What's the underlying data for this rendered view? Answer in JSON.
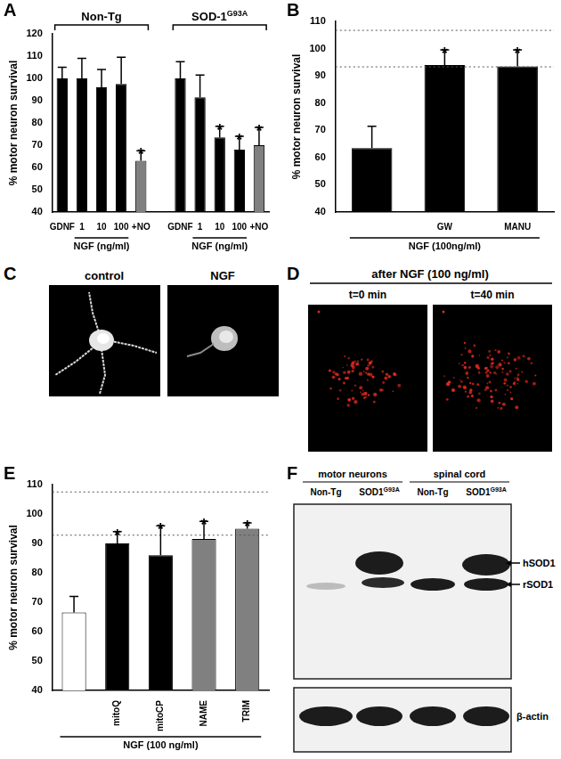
{
  "chart_data": [
    {
      "type": "bar",
      "panel": "A",
      "y_label": "% motor neuron survival",
      "categories": [
        "GDNF",
        "1",
        "10",
        "100",
        "+NO",
        null,
        "GDNF",
        "1",
        "10",
        "100",
        "+NO"
      ],
      "values": [
        100,
        100,
        96,
        97.5,
        63,
        null,
        100,
        91.5,
        73.5,
        68,
        70
      ],
      "errors": [
        5,
        9,
        8,
        12,
        4.5,
        null,
        7.5,
        10,
        5,
        6,
        8
      ],
      "colors": [
        "#000000",
        "#000000",
        "#000000",
        "#000000",
        "#808080",
        null,
        "#000000",
        "#000000",
        "#000000",
        "#000000",
        "#808080"
      ],
      "marks": [
        null,
        null,
        null,
        null,
        "*",
        null,
        null,
        null,
        "*",
        "*",
        "*"
      ],
      "groups": [
        {
          "name": "Non-Tg",
          "start": 0,
          "end": 4
        },
        {
          "name": "SOD-1",
          "sup": "G93A",
          "start": 6,
          "end": 10
        }
      ],
      "x_label": {
        "text": "NGF (ng/ml)",
        "spans": [
          [
            1,
            3
          ],
          [
            7,
            9
          ]
        ]
      },
      "ylim": [
        40,
        120
      ],
      "yticks": [
        40,
        50,
        60,
        70,
        80,
        90,
        100,
        110,
        120
      ],
      "grid": false
    },
    {
      "type": "bar",
      "panel": "B",
      "y_label": "% motor neuron survival",
      "categories": [
        null,
        "GW",
        "MANU"
      ],
      "values": [
        63.5,
        94,
        93.5
      ],
      "errors": [
        8,
        5.5,
        6
      ],
      "colors": [
        "#000000",
        "#000000",
        "#000000"
      ],
      "marks": [
        null,
        "*",
        "*"
      ],
      "reference_lines": [
        93.3,
        106.7
      ],
      "x_label": {
        "text": "NGF (100ng/ml)",
        "spans": [
          [
            0,
            2
          ]
        ]
      },
      "ylim": [
        40,
        110
      ],
      "yticks": [
        40,
        50,
        60,
        70,
        80,
        90,
        100,
        110
      ],
      "grid": false
    },
    {
      "type": "bar",
      "panel": "E",
      "y_label": "% motor neuron survival",
      "categories": [
        null,
        "mitoQ",
        "mitoCP",
        "NAME",
        "TRIM"
      ],
      "values": [
        66.5,
        90,
        86,
        91.5,
        95
      ],
      "errors": [
        5.5,
        4,
        10,
        6,
        2
      ],
      "colors": [
        "#ffffff",
        "#000000",
        "#000000",
        "#808080",
        "#808080"
      ],
      "marks": [
        null,
        "*",
        "*",
        "*",
        "*"
      ],
      "reference_lines": [
        92.8,
        107.5
      ],
      "x_label": {
        "text": "NGF (100 ng/ml)",
        "spans": [
          [
            0,
            4
          ]
        ]
      },
      "ylim": [
        40,
        110
      ],
      "yticks": [
        40,
        50,
        60,
        70,
        80,
        90,
        100,
        110
      ],
      "grid": false
    }
  ],
  "panels": {
    "C": {
      "label": "C",
      "images": [
        "control",
        "NGF"
      ]
    },
    "D": {
      "label": "D",
      "title": "after NGF (100 ng/ml)",
      "images": [
        "t=0 min",
        "t=40 min"
      ]
    },
    "F": {
      "label": "F",
      "groups": [
        "motor neurons",
        "spinal cord"
      ],
      "lanes": [
        {
          "text": "Non-Tg"
        },
        {
          "text": "SOD1",
          "sup": "G93A"
        },
        {
          "text": "Non-Tg"
        },
        {
          "text": "SOD1",
          "sup": "G93A"
        }
      ],
      "bands": [
        "hSOD1",
        "rSOD1"
      ],
      "loading": "β-actin"
    }
  }
}
